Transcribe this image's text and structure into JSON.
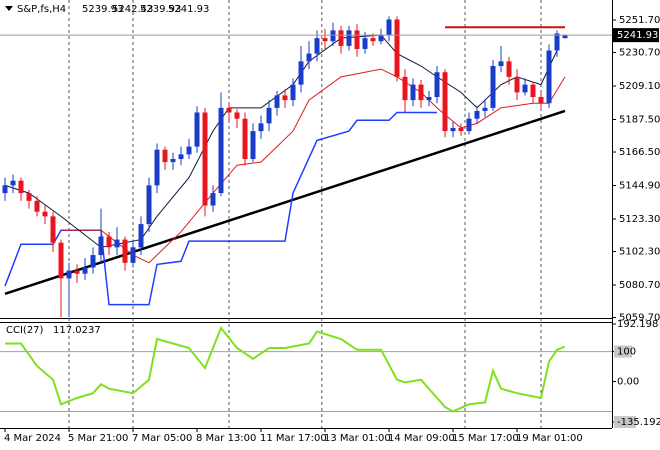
{
  "chart_data": [
    {
      "type": "candlestick",
      "title": "S&P,fs,H4",
      "categories": [
        "4 Mar 2024",
        null,
        null,
        null,
        null,
        null,
        null,
        null,
        "5 Mar 21:00",
        null,
        null,
        null,
        null,
        null,
        null,
        null,
        "7 Mar 05:00",
        null,
        null,
        null,
        null,
        null,
        null,
        null,
        "8 Mar 13:00",
        null,
        null,
        null,
        null,
        null,
        null,
        null,
        "11 Mar 17:00",
        null,
        null,
        null,
        null,
        null,
        null,
        null,
        "13 Mar 01:00",
        null,
        null,
        null,
        null,
        null,
        null,
        null,
        "14 Mar 09:00",
        null,
        null,
        null,
        null,
        null,
        null,
        null,
        "15 Mar 17:00",
        null,
        null,
        null,
        null,
        null,
        null,
        null,
        "19 Mar 01:00",
        null,
        null,
        null,
        null,
        null,
        null
      ],
      "open": [
        5140,
        5145,
        5148,
        5140,
        5135,
        5128,
        5125,
        5108,
        5085,
        5090,
        5088,
        5092,
        5100,
        5112,
        5105,
        5110,
        5095,
        5105,
        5120,
        5145,
        5168,
        5160,
        5162,
        5165,
        5170,
        5192,
        5132,
        5140,
        5195,
        5192,
        5188,
        5162,
        5180,
        5185,
        5195,
        5203,
        5200,
        5210,
        5225,
        5230,
        5240,
        5238,
        5245,
        5235,
        5245,
        5233,
        5240,
        5238,
        5242,
        5252,
        5215,
        5200,
        5210,
        5200,
        5202,
        5218,
        5180,
        5182,
        5180,
        5188,
        5193,
        5195,
        5222,
        5225,
        5215,
        5205,
        5210,
        5202,
        5198,
        5232,
        5239.93
      ],
      "high": [
        5150,
        5152,
        5150,
        5142,
        5138,
        5132,
        5128,
        5110,
        5095,
        5094,
        5098,
        5105,
        5130,
        5115,
        5118,
        5112,
        5110,
        5125,
        5150,
        5172,
        5170,
        5166,
        5170,
        5175,
        5196,
        5195,
        5145,
        5205,
        5198,
        5194,
        5192,
        5185,
        5190,
        5200,
        5206,
        5207,
        5214,
        5235,
        5238,
        5245,
        5246,
        5250,
        5248,
        5248,
        5249,
        5244,
        5243,
        5246,
        5254,
        5254,
        5220,
        5214,
        5213,
        5206,
        5222,
        5220,
        5186,
        5185,
        5192,
        5196,
        5200,
        5226,
        5235,
        5228,
        5220,
        5214,
        5212,
        5205,
        5236,
        5245,
        5242.43
      ],
      "low": [
        5135,
        5140,
        5135,
        5130,
        5125,
        5120,
        5102,
        5060,
        5060,
        5082,
        5084,
        5088,
        5095,
        5100,
        5100,
        5090,
        5092,
        5100,
        5115,
        5140,
        5155,
        5155,
        5158,
        5162,
        5166,
        5125,
        5128,
        5138,
        5186,
        5182,
        5158,
        5160,
        5175,
        5180,
        5190,
        5195,
        5196,
        5205,
        5220,
        5225,
        5233,
        5235,
        5230,
        5232,
        5228,
        5230,
        5235,
        5236,
        5238,
        5212,
        5192,
        5196,
        5195,
        5196,
        5198,
        5176,
        5176,
        5177,
        5178,
        5185,
        5189,
        5193,
        5218,
        5210,
        5200,
        5203,
        5198,
        5195,
        5195,
        5228,
        5239.93
      ],
      "close": [
        5145,
        5148,
        5140,
        5135,
        5128,
        5125,
        5108,
        5085,
        5090,
        5088,
        5092,
        5100,
        5112,
        5105,
        5110,
        5095,
        5105,
        5120,
        5145,
        5168,
        5160,
        5162,
        5165,
        5170,
        5192,
        5132,
        5140,
        5195,
        5192,
        5188,
        5162,
        5180,
        5185,
        5195,
        5203,
        5200,
        5210,
        5225,
        5230,
        5240,
        5238,
        5245,
        5235,
        5245,
        5233,
        5240,
        5238,
        5242,
        5252,
        5215,
        5200,
        5210,
        5200,
        5202,
        5218,
        5180,
        5182,
        5180,
        5188,
        5193,
        5195,
        5222,
        5225,
        5215,
        5205,
        5210,
        5202,
        5198,
        5232,
        5243,
        5241.93
      ],
      "up_color": "#1a3cc8",
      "down_color": "#e8141e",
      "overlays": [
        {
          "color": "#000000",
          "x": [
            0,
            70
          ],
          "values": [
            5075,
            5193
          ]
        },
        {
          "color": "#1f3fff",
          "x": [
            0,
            2,
            6,
            7,
            12,
            13,
            18,
            19,
            22,
            23,
            35,
            36,
            39,
            43,
            44,
            48,
            49,
            54
          ],
          "values": [
            5080,
            5107,
            5107,
            5116,
            5116,
            5068,
            5068,
            5094,
            5096,
            5109,
            5109,
            5140,
            5174,
            5180,
            5187,
            5187,
            5192,
            5192
          ]
        },
        {
          "color": "#e01b1b",
          "x": [
            7,
            12,
            16,
            18,
            22,
            26,
            29,
            32,
            36,
            38,
            42,
            47,
            49,
            52,
            54,
            57,
            59,
            62,
            66,
            68,
            70
          ],
          "values": [
            5116,
            5116,
            5100,
            5095,
            5115,
            5140,
            5158,
            5160,
            5180,
            5200,
            5215,
            5220,
            5215,
            5205,
            5195,
            5182,
            5185,
            5195,
            5198,
            5198,
            5215
          ]
        },
        {
          "color": "#101840",
          "x": [
            0,
            3,
            7,
            12,
            17,
            19,
            23,
            26,
            28,
            32,
            36,
            38,
            42,
            47,
            49,
            52,
            54,
            57,
            59,
            62,
            64,
            67,
            69
          ],
          "values": [
            5145,
            5140,
            5125,
            5105,
            5110,
            5125,
            5150,
            5180,
            5195,
            5195,
            5210,
            5225,
            5240,
            5242,
            5230,
            5222,
            5215,
            5205,
            5195,
            5210,
            5215,
            5210,
            5232
          ]
        },
        {
          "color": "#cc1111",
          "x": [
            55,
            70
          ],
          "values": [
            5247,
            5247
          ]
        }
      ],
      "ylim": [
        5059.4,
        5264.6
      ],
      "yticks": [
        {
          "value": 5251.7,
          "label": "5251.70"
        },
        {
          "value": 5230.7,
          "label": "5230.70"
        },
        {
          "value": 5209.1,
          "label": "5209.10"
        },
        {
          "value": 5187.5,
          "label": "5187.50"
        },
        {
          "value": 5166.5,
          "label": "5166.50"
        },
        {
          "value": 5144.9,
          "label": "5144.90"
        },
        {
          "value": 5123.3,
          "label": "5123.30"
        },
        {
          "value": 5102.3,
          "label": "5102.30"
        },
        {
          "value": 5080.7,
          "label": "5080.70"
        },
        {
          "value": 5059.7,
          "label": "5059.70"
        }
      ]
    },
    {
      "type": "line",
      "title": "CCI(27)",
      "color": "#7fe01f",
      "x": [
        0,
        2,
        4,
        6,
        7,
        9,
        11,
        12,
        13,
        16,
        18,
        19,
        21,
        23,
        25,
        27,
        29,
        31,
        33,
        35,
        38,
        39,
        42,
        44,
        47,
        49,
        50,
        52,
        55,
        56,
        58,
        60,
        61,
        62,
        64,
        67,
        68,
        69,
        70
      ],
      "values": [
        127,
        127,
        52,
        6,
        -76,
        -55,
        -39,
        -9,
        -24,
        -39,
        6,
        142,
        127,
        112,
        45,
        179,
        112,
        76,
        112,
        112,
        127,
        167,
        142,
        106,
        106,
        6,
        -3,
        6,
        -85,
        -100,
        -76,
        -70,
        36,
        -24,
        -39,
        -55,
        67,
        106,
        117.0237
      ],
      "levels": [
        100,
        -100
      ],
      "ylim": [
        -135.1923,
        192.198
      ],
      "yticks": [
        192.198,
        100,
        {
          "value": 0,
          "label": "0.00"
        },
        -135.1923
      ]
    }
  ]
}
